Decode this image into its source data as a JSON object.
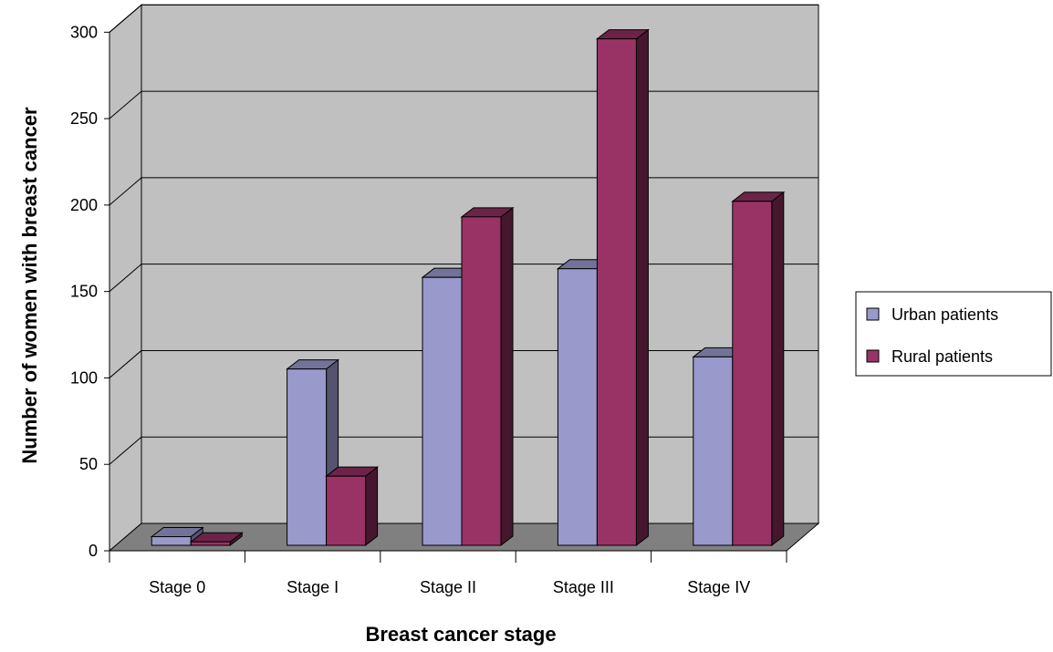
{
  "chart_data": {
    "type": "bar",
    "categories": [
      "Stage 0",
      "Stage I",
      "Stage II",
      "Stage III",
      "Stage IV"
    ],
    "series": [
      {
        "name": "Urban patients",
        "values": [
          5,
          102,
          155,
          160,
          109
        ],
        "color": "#9999cc"
      },
      {
        "name": "Rural patients",
        "values": [
          2,
          40,
          190,
          293,
          199
        ],
        "color": "#993366"
      }
    ],
    "yticks": [
      0,
      50,
      100,
      150,
      200,
      250,
      300
    ],
    "ylim": [
      0,
      300
    ],
    "xlabel": "Breast cancer stage",
    "ylabel": "Number of women with breast cancer",
    "legend_position": "right",
    "grid": true,
    "wall_color": "#c0c0c0",
    "floor_color": "#808080"
  }
}
